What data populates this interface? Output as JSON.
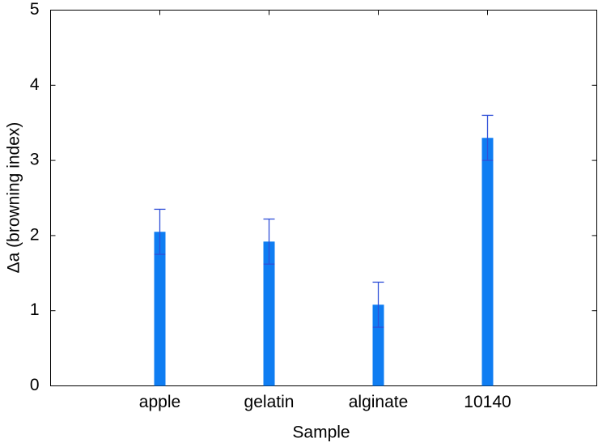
{
  "chart_data": {
    "type": "bar",
    "x_label": "Sample",
    "y_label": "Δa (browning index)",
    "categories": [
      "apple",
      "gelatin",
      "alginate",
      "10140"
    ],
    "values": [
      2.05,
      1.92,
      1.08,
      3.3
    ],
    "errors": [
      0.3,
      0.3,
      0.3,
      0.3
    ],
    "color": "#0f7df2",
    "error_color": "#3050d8",
    "ylim": [
      0,
      5
    ],
    "yticks": [
      0,
      1,
      2,
      3,
      4,
      5
    ]
  }
}
